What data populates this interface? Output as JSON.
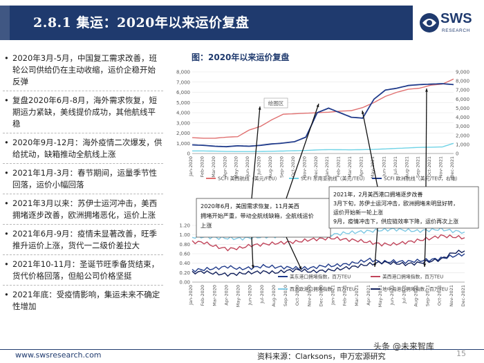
{
  "header": {
    "title": "2.8.1 集运：2020年以来运价复盘",
    "logo_text": "SWS",
    "logo_sub": "RESEARCH",
    "brand_color": "#1f3a6e"
  },
  "bullets": [
    "2020年3月-5月，中国复工需求改善，班轮公司供给仍在主动收缩，运价企稳开始反弹",
    "复盘2020年6月-8月，海外需求恢复，短期运力紧缺，美线提价成功，其他航线平稳",
    "2020年9月-12月：海外疫情二次爆发，供给扰动，缺箱推动全航线上涨",
    "2021年1月-3月：春节期间，运量季节性回落，运价小幅回落",
    "2021年3月以来：苏伊士运河冲击，美西拥堵逐步改善，欧洲拥堵恶化，运价上涨",
    "2021年6月-9月：疫情未显著改善，旺季推升运价上涨，货代一二级价差拉大",
    "2021年10-11月：圣诞节旺季备货结束，货代价格回落，但船公司价格坚挺",
    "2021年底：受疫情影响，集运未来不确定性增加"
  ],
  "chart_title": "图：2020年以来运价复盘",
  "chart_data": [
    {
      "type": "line",
      "title": "",
      "x_labels": [
        "Jan-2020",
        "Feb-2020",
        "Mar-2020",
        "Apr-2020",
        "May-2020",
        "Jun-2020",
        "Jul-2020",
        "Aug-2020",
        "Sep-2020",
        "Oct-2020",
        "Nov-2020",
        "Dec-2020",
        "Jan-2021",
        "Feb-2021",
        "Mar-2021",
        "Apr-2021",
        "May-2021",
        "Jun-2021",
        "Jul-2021",
        "Aug-2021",
        "Sep-2021",
        "Oct-2021",
        "Nov-2021",
        "Dec-2021"
      ],
      "y_left_ticks": [
        "0",
        "1,000",
        "2,000",
        "3,000",
        "4,000",
        "5,000",
        "6,000",
        "7,000",
        "8,000"
      ],
      "y_right_ticks": [
        "0",
        "1,000",
        "2,000",
        "3,000",
        "4,000",
        "5,000",
        "6,000",
        "7,000",
        "8,000",
        "9,000"
      ],
      "ylim_left": [
        0,
        8000
      ],
      "ylim_right": [
        0,
        9000
      ],
      "series": [
        {
          "name": "SCFI 美西航线（美元/FEU）",
          "axis": "left",
          "color": "#e07070",
          "values": [
            1550,
            1500,
            1500,
            1600,
            1650,
            2300,
            2650,
            3300,
            3850,
            3900,
            3950,
            4000,
            4050,
            4150,
            4200,
            4500,
            5000,
            5600,
            6000,
            6300,
            6400,
            6700,
            6800,
            7300
          ]
        },
        {
          "name": "SCFI 东南亚航线（美元/TEU）",
          "axis": "left",
          "color": "#6fd3e6",
          "values": [
            250,
            250,
            230,
            200,
            190,
            190,
            200,
            220,
            240,
            270,
            300,
            350,
            380,
            370,
            360,
            380,
            400,
            450,
            500,
            550,
            600,
            620,
            640,
            1000
          ]
        },
        {
          "name": "SCFI 欧洲航线（美元/TEU，右轴）",
          "axis": "right",
          "color": "#1f3a8a",
          "values": [
            950,
            900,
            800,
            750,
            850,
            800,
            900,
            1050,
            1150,
            1300,
            1800,
            4500,
            5000,
            4500,
            4000,
            3900,
            6000,
            7000,
            7200,
            7500,
            7600,
            7650,
            7700,
            7600
          ]
        }
      ],
      "annotation": "绘图区"
    },
    {
      "type": "line",
      "title": "",
      "x_labels": [
        "Jan-2020",
        "Feb-2020",
        "Mar-2020",
        "Apr-2020",
        "May-2020",
        "Jun-2020",
        "Jul-2020",
        "Aug-2020",
        "Sep-2020",
        "Oct-2020",
        "Nov-2020",
        "Dec-2020",
        "Jan-2021",
        "Feb-2021",
        "Mar-2021",
        "Apr-2021",
        "May-2021",
        "Jun-2021",
        "Jul-2021",
        "Aug-2021",
        "Sep-2021",
        "Oct-2021",
        "Nov-2021",
        "Dec-2021"
      ],
      "y_ticks": [
        "0.00",
        "0.20",
        "0.40",
        "0.60",
        "0.80",
        "1.00",
        "1.20"
      ],
      "ylim": [
        0,
        1.2
      ],
      "series": [
        {
          "name": "美东港口拥堵指数，百万TEU",
          "color": "#1f3a8a",
          "values": [
            0.25,
            0.27,
            0.29,
            0.33,
            0.28,
            0.3,
            0.34,
            0.32,
            0.31,
            0.29,
            0.3,
            0.34,
            0.35,
            0.38,
            0.42,
            0.48,
            0.42,
            0.44,
            0.43,
            0.45,
            0.47,
            0.5,
            0.55,
            0.6
          ]
        },
        {
          "name": "美西港口拥堵指数，百万TEU",
          "color": "#c0445a",
          "values": [
            0.85,
            0.84,
            0.75,
            0.7,
            0.72,
            0.78,
            0.8,
            0.82,
            0.84,
            0.86,
            0.9,
            0.92,
            0.93,
            0.9,
            0.88,
            0.84,
            0.8,
            0.8,
            0.84,
            0.88,
            0.92,
            0.98,
            0.96,
            0.94
          ]
        },
        {
          "name": "西北欧港口拥堵指数，百万TEU",
          "color": "#7ec8e3",
          "values": [
            0.95,
            0.96,
            0.94,
            0.93,
            0.92,
            0.94,
            0.96,
            0.97,
            0.98,
            1.0,
            1.02,
            1.0,
            1.01,
            1.04,
            1.06,
            1.08,
            1.1,
            1.12,
            1.1,
            1.08,
            1.1,
            1.12,
            1.08,
            1.06
          ]
        },
        {
          "name": "地中海港口拥堵指数，百万TEU",
          "color": "#0f1e5a",
          "values": [
            0.2,
            0.22,
            0.18,
            0.16,
            0.18,
            0.2,
            0.22,
            0.2,
            0.24,
            0.26,
            0.22,
            0.24,
            0.26,
            0.3,
            0.34,
            0.38,
            0.42,
            0.4,
            0.38,
            0.4,
            0.44,
            0.48,
            0.62,
            0.66
          ]
        }
      ]
    }
  ],
  "callouts": {
    "left": "2020年6月，美国需求恢复，11月美西拥堵开始严重，带动全航线缺箱，全航线运价上涨",
    "right_lines": [
      "2021年，2月美西港口拥堵逐步改善",
      "3月下旬，苏伊士运河冲击，欧洲拥堵未明显好转，",
      "运价开始新一轮上涨",
      "9月，疫情冲击下，供应链效率下降，运价再次上涨"
    ]
  },
  "footer": {
    "url": "www.swsresearch.com",
    "source": "资料来源：Clarksons，申万宏源研究",
    "watermark": "头条 @未来智库",
    "page": "15"
  }
}
